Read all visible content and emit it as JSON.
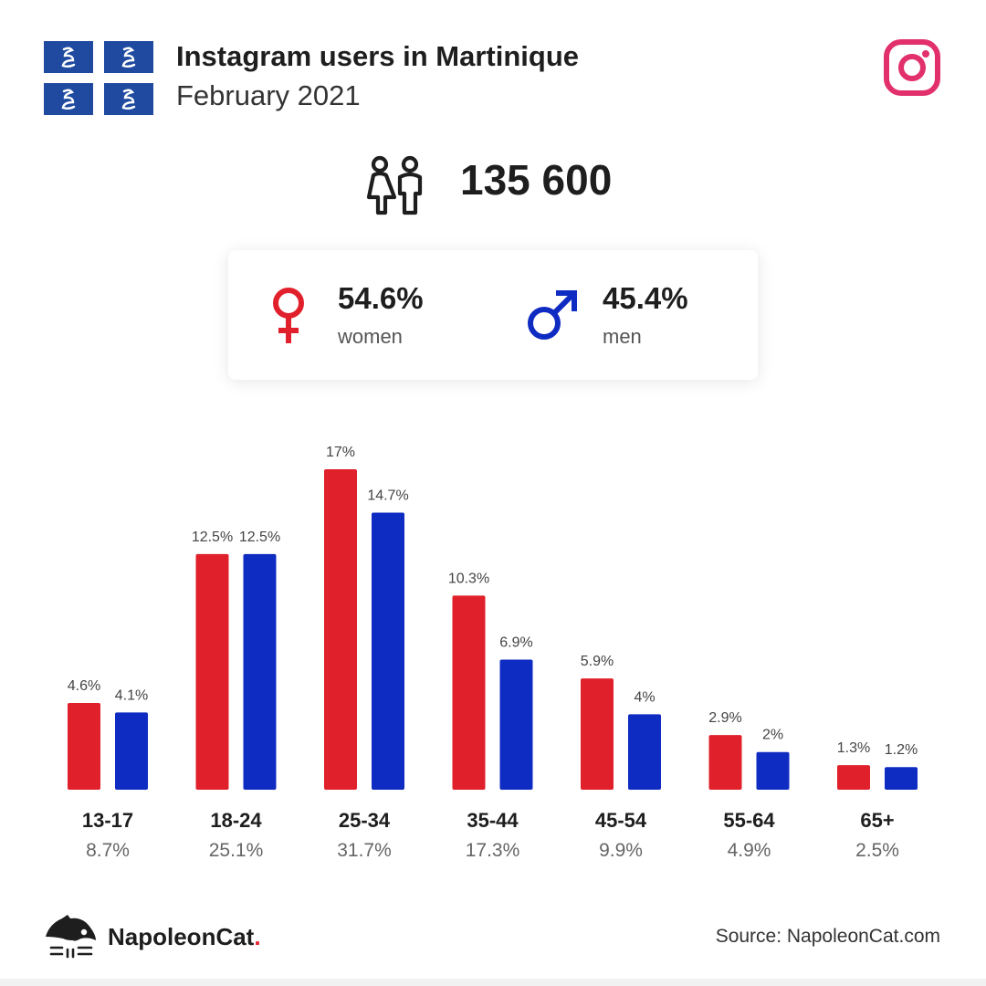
{
  "header": {
    "title": "Instagram users in Martinique",
    "subtitle": "February 2021"
  },
  "icons": {
    "flag": "martinique-flag-icon",
    "platform": "instagram-icon",
    "people": "people-icon",
    "female": "female-symbol-icon",
    "male": "male-symbol-icon",
    "brand": "napoleoncat-logo-icon"
  },
  "total": {
    "value": "135 600"
  },
  "gender": {
    "women": {
      "pct": "54.6%",
      "label": "women"
    },
    "men": {
      "pct": "45.4%",
      "label": "men"
    }
  },
  "colors": {
    "women": "#e0202a",
    "men": "#0f2cc2",
    "instagram": "#e1306c",
    "flag_blue": "#1f4aa0"
  },
  "chart_data": {
    "type": "bar",
    "categories": [
      "13-17",
      "18-24",
      "25-34",
      "35-44",
      "45-54",
      "55-64",
      "65+"
    ],
    "category_totals": [
      "8.7%",
      "25.1%",
      "31.7%",
      "17.3%",
      "9.9%",
      "4.9%",
      "2.5%"
    ],
    "series": [
      {
        "name": "women",
        "values": [
          4.6,
          12.5,
          17,
          10.3,
          5.9,
          2.9,
          1.3
        ],
        "labels": [
          "4.6%",
          "12.5%",
          "17%",
          "10.3%",
          "5.9%",
          "2.9%",
          "1.3%"
        ]
      },
      {
        "name": "men",
        "values": [
          4.1,
          12.5,
          14.7,
          6.9,
          4,
          2,
          1.2
        ],
        "labels": [
          "4.1%",
          "12.5%",
          "14.7%",
          "6.9%",
          "4%",
          "2%",
          "1.2%"
        ]
      }
    ],
    "ylim": [
      0,
      17
    ],
    "grid": false,
    "legend": "none"
  },
  "footer": {
    "brand": "NapoleonCat",
    "brand_dot": ".",
    "source": "Source: NapoleonCat.com"
  }
}
